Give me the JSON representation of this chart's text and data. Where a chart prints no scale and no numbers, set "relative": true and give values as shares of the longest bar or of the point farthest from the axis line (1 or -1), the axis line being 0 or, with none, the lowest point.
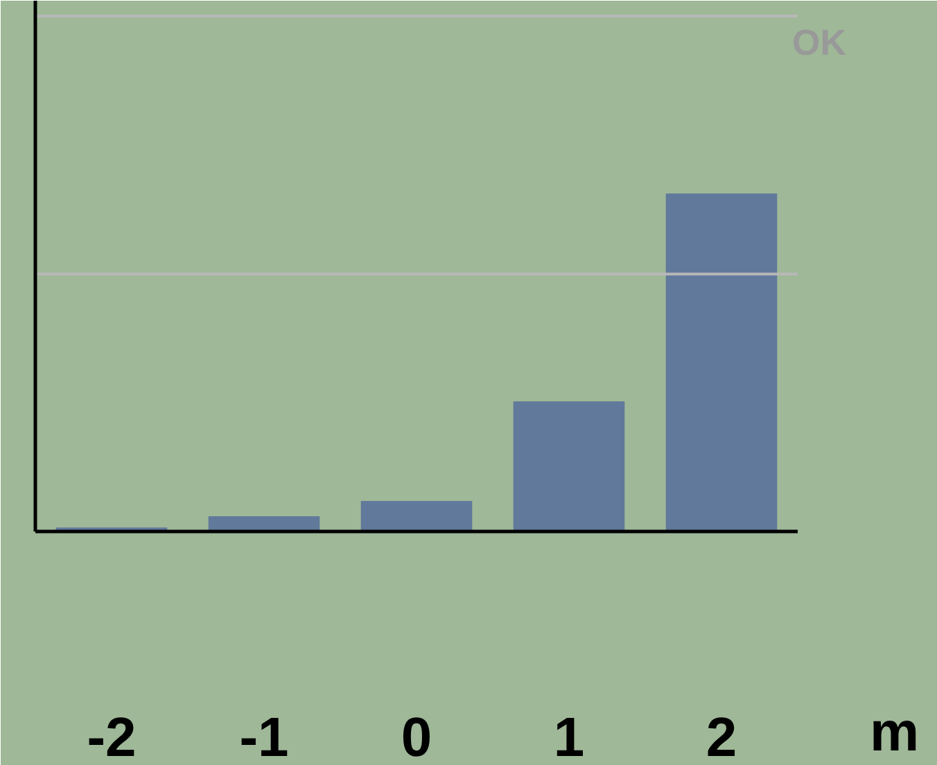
{
  "chart_data": {
    "type": "bar",
    "relative": true,
    "xlabel": "m",
    "categories": [
      "-2",
      "-1",
      "0",
      "1",
      "2"
    ],
    "values": [
      0.012,
      0.045,
      0.09,
      0.385,
      1
    ],
    "color": "#61799a",
    "ref_lines": [
      {
        "axis": "y",
        "value": 1.525,
        "label": "OK",
        "color": "#b8b8b8"
      },
      {
        "axis": "y",
        "value": 0.762,
        "color": "#b8b8b8"
      }
    ],
    "grid": false
  }
}
